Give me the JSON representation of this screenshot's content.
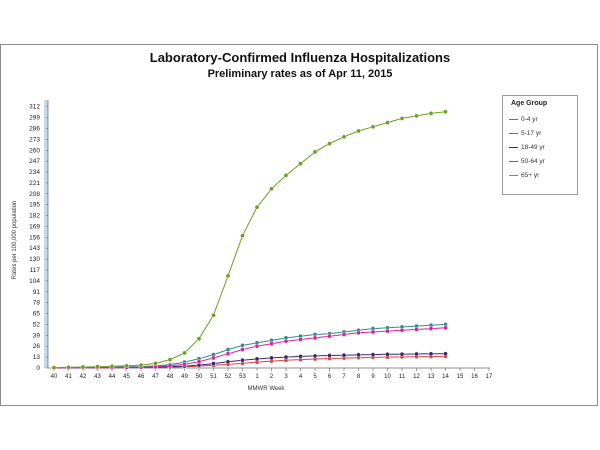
{
  "chart_data": {
    "type": "line",
    "title": "Laboratory-Confirmed Influenza Hospitalizations",
    "subtitle": "Preliminary rates as of Apr 11, 2015",
    "xlabel": "MMWR Week",
    "ylabel": "Rates per 100,000 population",
    "categories": [
      "40",
      "41",
      "42",
      "43",
      "44",
      "45",
      "46",
      "47",
      "48",
      "49",
      "50",
      "51",
      "52",
      "53",
      "1",
      "2",
      "3",
      "4",
      "5",
      "6",
      "7",
      "8",
      "9",
      "10",
      "11",
      "12",
      "13",
      "14",
      "15",
      "16",
      "17"
    ],
    "y_ticks": [
      0,
      13,
      26,
      39,
      52,
      65,
      78,
      91,
      104,
      117,
      130,
      143,
      156,
      169,
      182,
      195,
      208,
      221,
      234,
      247,
      260,
      273,
      286,
      299,
      312
    ],
    "ylim": [
      0,
      320
    ],
    "legend_title": "Age Group",
    "legend_position": "right",
    "grid": false,
    "series": [
      {
        "name": "0-4 yr",
        "color": "#2e8b8b",
        "values": [
          0.2,
          0.4,
          0.6,
          0.8,
          1.0,
          1.3,
          1.7,
          2.5,
          4,
          7,
          11,
          16,
          22,
          27,
          30,
          33,
          36,
          38,
          40,
          41,
          43,
          45,
          47,
          48,
          49,
          50,
          51,
          52,
          null,
          null,
          null
        ]
      },
      {
        "name": "5-17 yr",
        "color": "#e04040",
        "values": [
          0.1,
          0.1,
          0.2,
          0.3,
          0.4,
          0.5,
          0.6,
          0.8,
          1.1,
          1.6,
          2.3,
          3.2,
          4.3,
          5.5,
          7.0,
          8.2,
          9.2,
          10.0,
          10.7,
          11.3,
          11.8,
          12.3,
          12.7,
          13.0,
          13.3,
          13.5,
          13.7,
          13.9,
          null,
          null,
          null
        ]
      },
      {
        "name": "18-49 yr",
        "color": "#3a2a6e",
        "values": [
          0.1,
          0.2,
          0.3,
          0.4,
          0.5,
          0.6,
          0.8,
          1.0,
          1.5,
          2.3,
          3.5,
          5.3,
          7.4,
          9.3,
          10.8,
          12.0,
          13.0,
          13.8,
          14.4,
          14.9,
          15.3,
          15.7,
          16.0,
          16.3,
          16.5,
          16.7,
          16.9,
          17.0,
          null,
          null,
          null
        ]
      },
      {
        "name": "50-64 yr",
        "color": "#d6249f",
        "values": [
          0.1,
          0.2,
          0.3,
          0.4,
          0.5,
          0.7,
          1.0,
          1.5,
          2.6,
          4.5,
          7.5,
          12,
          17,
          22,
          26,
          29,
          32,
          34,
          36,
          38,
          40,
          42,
          43,
          44,
          45,
          46,
          47,
          48,
          null,
          null,
          null
        ]
      },
      {
        "name": "65+ yr",
        "color": "#6aa121",
        "values": [
          0.5,
          0.8,
          1.2,
          1.6,
          2.0,
          2.6,
          3.5,
          5.5,
          10,
          18,
          35,
          63,
          110,
          158,
          192,
          214,
          230,
          244,
          258,
          268,
          276,
          283,
          288,
          293,
          298,
          301,
          304,
          306,
          null,
          null,
          null
        ]
      }
    ]
  }
}
